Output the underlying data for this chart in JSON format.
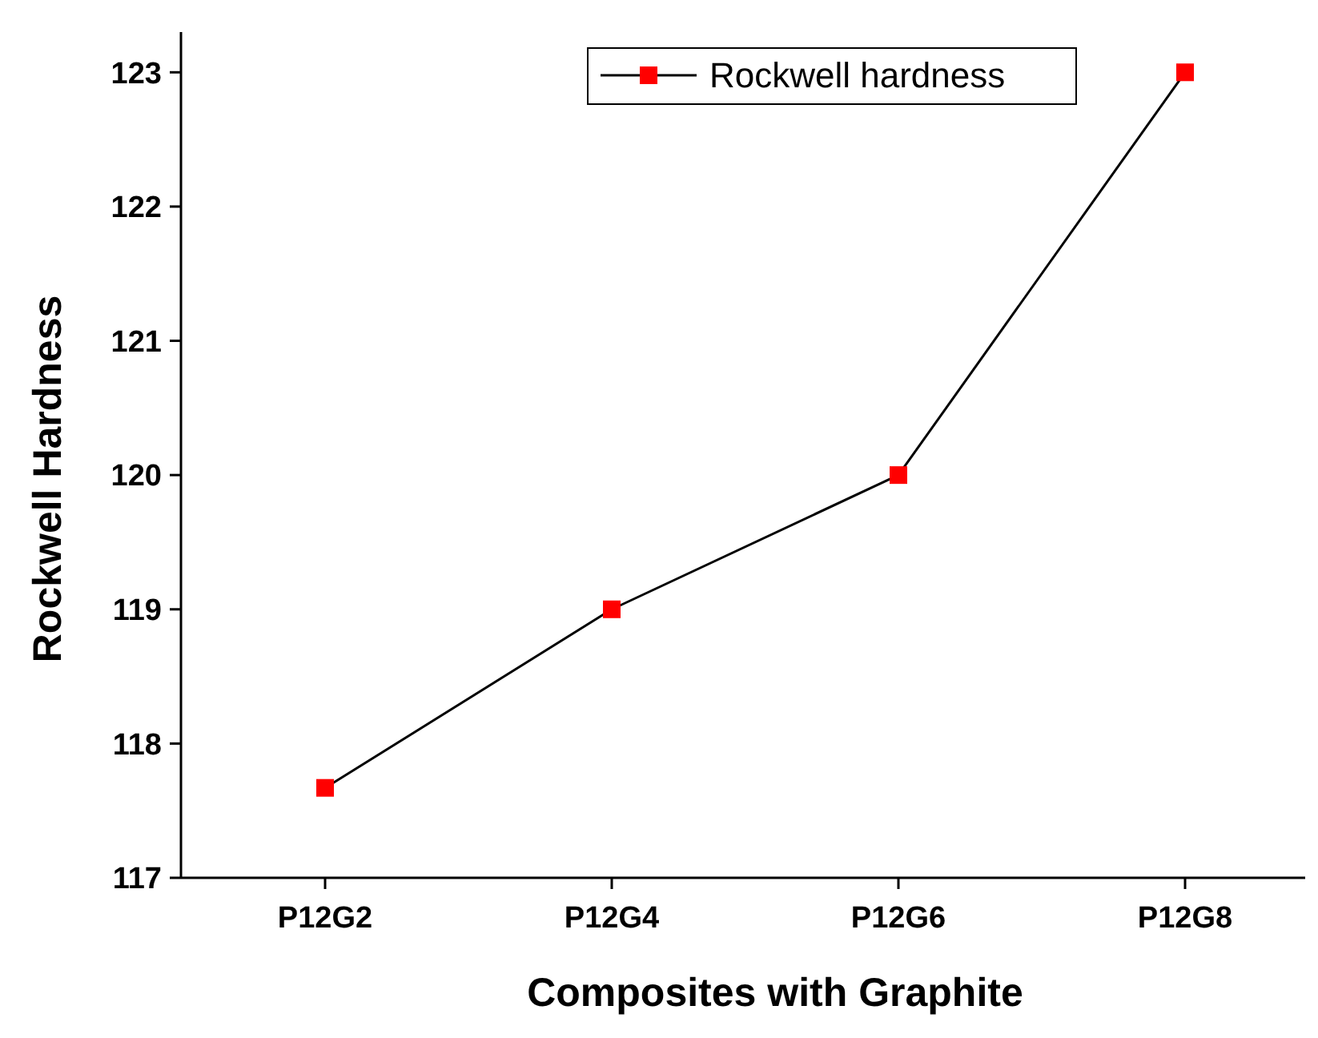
{
  "chart_data": {
    "type": "line",
    "xlabel": "Composites with Graphite",
    "ylabel": "Rockwell Hardness",
    "categories": [
      "P12G2",
      "P12G4",
      "P12G6",
      "P12G8"
    ],
    "series": [
      {
        "name": "Rockwell hardness",
        "color": "#ff0000",
        "values": [
          117.67,
          119,
          120,
          123
        ]
      }
    ],
    "ylim": [
      117,
      123.3
    ],
    "yticks": [
      117,
      118,
      119,
      120,
      121,
      122,
      123
    ],
    "marker": "square",
    "line_style": "solid",
    "legend": "top right",
    "grid": false
  }
}
